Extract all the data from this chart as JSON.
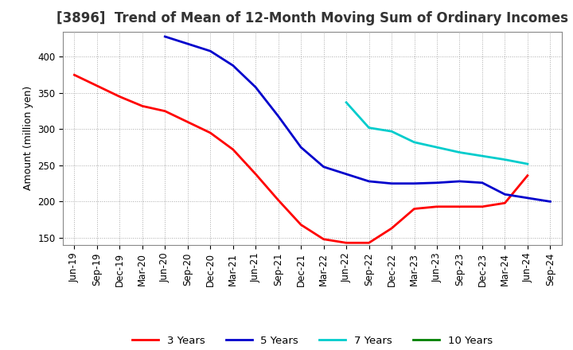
{
  "title": "[3896]  Trend of Mean of 12-Month Moving Sum of Ordinary Incomes",
  "ylabel": "Amount (million yen)",
  "ylim": [
    140,
    435
  ],
  "yticks": [
    150,
    200,
    250,
    300,
    350,
    400
  ],
  "x_labels": [
    "Jun-19",
    "Sep-19",
    "Dec-19",
    "Mar-20",
    "Jun-20",
    "Sep-20",
    "Dec-20",
    "Mar-21",
    "Jun-21",
    "Sep-21",
    "Dec-21",
    "Mar-22",
    "Jun-22",
    "Sep-22",
    "Dec-22",
    "Mar-23",
    "Jun-23",
    "Sep-23",
    "Dec-23",
    "Mar-24",
    "Jun-24",
    "Sep-24"
  ],
  "series": {
    "3 Years": {
      "color": "#ff0000",
      "data": [
        375,
        360,
        345,
        332,
        325,
        310,
        295,
        272,
        238,
        202,
        168,
        148,
        143,
        143,
        163,
        190,
        193,
        193,
        193,
        198,
        236,
        null
      ]
    },
    "5 Years": {
      "color": "#0000cc",
      "data": [
        null,
        null,
        null,
        null,
        428,
        418,
        408,
        388,
        358,
        318,
        275,
        248,
        238,
        228,
        225,
        225,
        226,
        228,
        226,
        210,
        205,
        200
      ]
    },
    "7 Years": {
      "color": "#00cccc",
      "data": [
        null,
        null,
        null,
        null,
        null,
        null,
        null,
        null,
        null,
        null,
        null,
        null,
        337,
        302,
        297,
        282,
        275,
        268,
        263,
        258,
        252,
        null
      ]
    },
    "10 Years": {
      "color": "#008000",
      "data": [
        null,
        null,
        null,
        null,
        null,
        null,
        null,
        null,
        null,
        null,
        null,
        null,
        null,
        null,
        null,
        null,
        null,
        null,
        null,
        null,
        null,
        null
      ]
    }
  },
  "background_color": "#ffffff",
  "grid_color": "#aaaaaa",
  "title_fontsize": 12,
  "label_fontsize": 9,
  "tick_fontsize": 8.5,
  "legend_fontsize": 9.5
}
